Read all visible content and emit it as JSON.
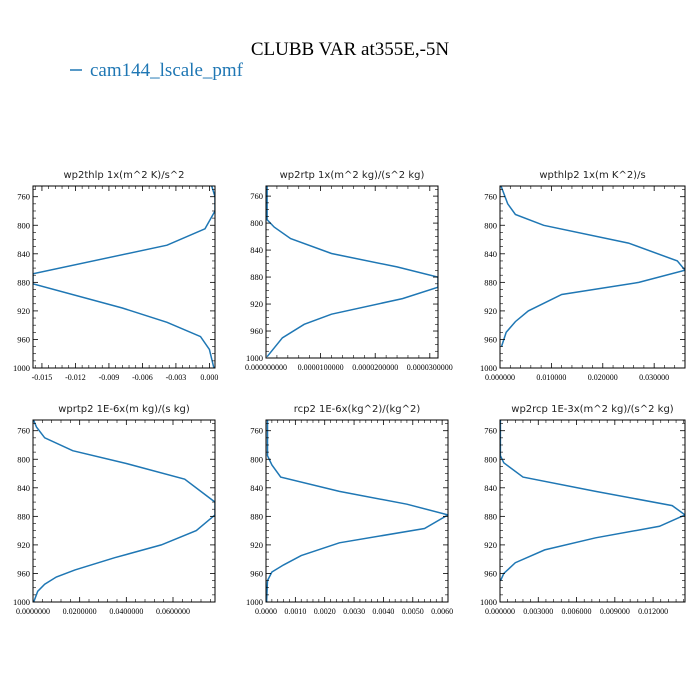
{
  "figure": {
    "title": "CLUBB VAR at355E,-5N",
    "legend_label": "cam144_lscale_pmf",
    "series_color": "#1f77b4"
  },
  "chart_data": [
    {
      "type": "line",
      "title": "wp2thlp  1x(m^2 K)/s^2",
      "xlim": [
        -0.0158,
        0.0005
      ],
      "ylim": [
        1000,
        745
      ],
      "xticks": [
        -0.015,
        -0.012,
        -0.009,
        -0.006,
        -0.003,
        0.0
      ],
      "xtick_labels": [
        "-0.015",
        "-0.012",
        "-0.009",
        "-0.006",
        "-0.003",
        "0.000"
      ],
      "yticks": [
        760,
        800,
        840,
        880,
        920,
        960,
        1000
      ],
      "ytick_labels": [
        "760",
        "800",
        "840",
        "880",
        "920",
        "960",
        "1000"
      ],
      "series": [
        {
          "x": [
            0.0002,
            0.0005,
            0.0005,
            -0.0004,
            -0.0038,
            -0.0158,
            -0.0158,
            -0.0078,
            -0.0038,
            -0.0008,
            0.0,
            0.0004
          ],
          "y": [
            745,
            760,
            780,
            805,
            828,
            868,
            882,
            916,
            936,
            956,
            974,
            1000
          ]
        }
      ]
    },
    {
      "type": "line",
      "title": "wp2rtp  1x(m^2 kg)/(s^2 kg)",
      "xlim": [
        0.0,
        3.15e-05
      ],
      "ylim": [
        1000,
        745
      ],
      "xticks": [
        0.0,
        1e-05,
        2e-05,
        3e-05
      ],
      "xtick_labels": [
        "0.000000000",
        "0.0000100000",
        "0.0000200000",
        "0.0000300000"
      ],
      "yticks": [
        760,
        800,
        840,
        880,
        920,
        960,
        1000
      ],
      "ytick_labels": [
        "760",
        "800",
        "840",
        "880",
        "920",
        "960",
        "1000"
      ],
      "series": [
        {
          "x": [
            2e-07,
            2e-07,
            1.5e-06,
            4.5e-06,
            1.2e-05,
            2.4e-05,
            3.15e-05,
            3.15e-05,
            2.5e-05,
            1.2e-05,
            7e-06,
            3e-06,
            2e-07
          ],
          "y": [
            745,
            795,
            806,
            823,
            845,
            865,
            880,
            895,
            912,
            935,
            950,
            970,
            998
          ]
        }
      ]
    },
    {
      "type": "line",
      "title": "wpthlp2  1x(m K^2)/s",
      "xlim": [
        0.0,
        0.036
      ],
      "ylim": [
        1000,
        745
      ],
      "xticks": [
        0.0,
        0.01,
        0.02,
        0.03
      ],
      "xtick_labels": [
        "0.000000",
        "0.010000",
        "0.020000",
        "0.030000"
      ],
      "yticks": [
        760,
        800,
        840,
        880,
        920,
        960,
        1000
      ],
      "ytick_labels": [
        "760",
        "800",
        "840",
        "880",
        "920",
        "960",
        "1000"
      ],
      "series": [
        {
          "x": [
            0.0002,
            0.0015,
            0.003,
            0.0085,
            0.025,
            0.0345,
            0.036,
            0.027,
            0.012,
            0.0055,
            0.003,
            0.0012,
            0.0003
          ],
          "y": [
            745,
            770,
            785,
            800,
            825,
            850,
            863,
            880,
            897,
            920,
            935,
            950,
            970
          ]
        }
      ]
    },
    {
      "type": "line",
      "title": "wprtp2  1E-6x(m kg)/(s kg)",
      "xlim": [
        0.0,
        0.078
      ],
      "ylim": [
        1000,
        745
      ],
      "xticks": [
        0.0,
        0.02,
        0.04,
        0.06
      ],
      "xtick_labels": [
        "0.0000000",
        "0.0200000",
        "0.0400000",
        "0.0600000"
      ],
      "yticks": [
        760,
        800,
        840,
        880,
        920,
        960,
        1000
      ],
      "ytick_labels": [
        "760",
        "800",
        "840",
        "880",
        "920",
        "960",
        "1000"
      ],
      "series": [
        {
          "x": [
            0.0002,
            0.0015,
            0.005,
            0.017,
            0.04,
            0.065,
            0.078,
            0.078,
            0.07,
            0.055,
            0.035,
            0.018,
            0.01,
            0.005,
            0.002,
            0.0003
          ],
          "y": [
            745,
            755,
            770,
            788,
            806,
            828,
            860,
            878,
            900,
            920,
            938,
            955,
            965,
            975,
            985,
            1000
          ]
        }
      ]
    },
    {
      "type": "line",
      "title": "rcp2  1E-6x(kg^2)/(kg^2)",
      "xlim": [
        0.0,
        0.0062
      ],
      "ylim": [
        1000,
        745
      ],
      "xticks": [
        0.0,
        0.001,
        0.002,
        0.003,
        0.004,
        0.005,
        0.006
      ],
      "xtick_labels": [
        "0.0000",
        "0.0010",
        "0.0020",
        "0.0030",
        "0.0040",
        "0.0050",
        "0.0060"
      ],
      "yticks": [
        760,
        800,
        840,
        880,
        920,
        960,
        1000
      ],
      "ytick_labels": [
        "760",
        "800",
        "840",
        "880",
        "920",
        "960",
        "1000"
      ],
      "series": [
        {
          "x": [
            5e-05,
            5e-05,
            0.0002,
            0.0005,
            0.0025,
            0.0048,
            0.0062,
            0.0054,
            0.0025,
            0.0012,
            0.0006,
            0.0002,
            5e-05,
            2e-05
          ],
          "y": [
            745,
            795,
            808,
            825,
            845,
            863,
            878,
            897,
            917,
            935,
            948,
            958,
            970,
            1000
          ]
        }
      ]
    },
    {
      "type": "line",
      "title": "wp2rcp  1E-3x(m^2 kg)/(s^2 kg)",
      "xlim": [
        0.0,
        0.0145
      ],
      "ylim": [
        1000,
        745
      ],
      "xticks": [
        0.0,
        0.003,
        0.006,
        0.009,
        0.012
      ],
      "xtick_labels": [
        "0.000000",
        "0.003000",
        "0.006000",
        "0.009000",
        "0.012000"
      ],
      "yticks": [
        760,
        800,
        840,
        880,
        920,
        960,
        1000
      ],
      "ytick_labels": [
        "760",
        "800",
        "840",
        "880",
        "920",
        "960",
        "1000"
      ],
      "series": [
        {
          "x": [
            3e-05,
            3e-05,
            0.0003,
            0.0018,
            0.0075,
            0.0135,
            0.0145,
            0.0125,
            0.0075,
            0.0035,
            0.0012,
            0.0003,
            5e-05
          ],
          "y": [
            745,
            795,
            805,
            825,
            845,
            865,
            878,
            894,
            910,
            927,
            945,
            960,
            970
          ]
        }
      ]
    }
  ]
}
